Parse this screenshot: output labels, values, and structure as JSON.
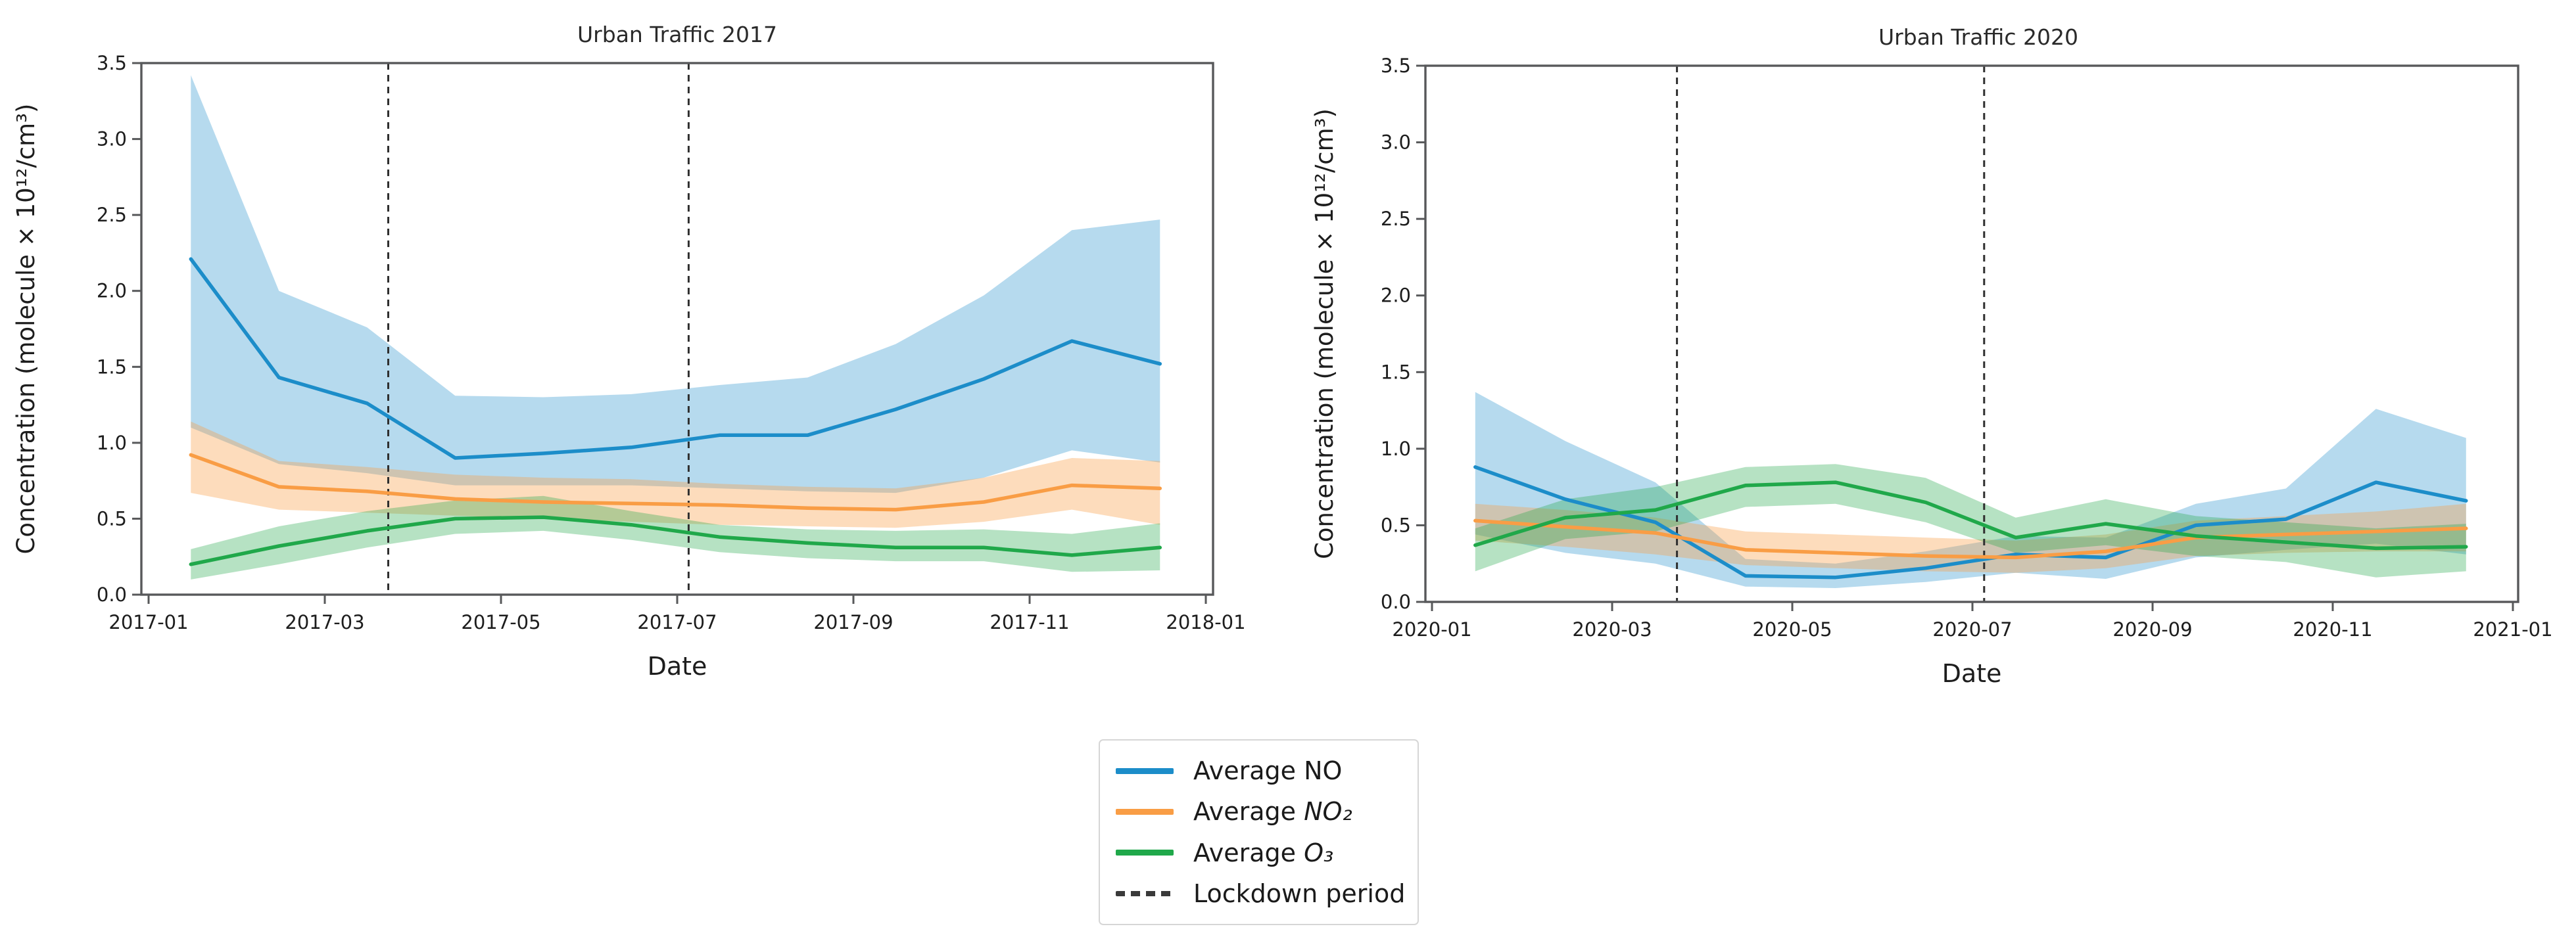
{
  "page": {
    "background_color": "#ffffff"
  },
  "legend": {
    "items": [
      {
        "prefix": "Average ",
        "formula": "NO",
        "swatch": "line",
        "color": "#1c8dc9"
      },
      {
        "prefix": "Average ",
        "formula": "NO₂",
        "swatch": "line",
        "color": "#f99d45"
      },
      {
        "prefix": "Average ",
        "formula": "O₃",
        "swatch": "line",
        "color": "#20a84a"
      },
      {
        "prefix": "Lockdown period",
        "formula": "",
        "swatch": "dashed",
        "color": "#3a3a3a"
      }
    ]
  },
  "chart_data": [
    {
      "type": "line",
      "title": "Urban Traffic 2017",
      "xlabel": "Date",
      "ylabel": "Concentration (molecule × 10¹²/cm³)",
      "ylim": [
        0,
        3.5
      ],
      "ytick_labels": [
        "0.0",
        "0.5",
        "1.0",
        "1.5",
        "2.0",
        "2.5",
        "3.0",
        "3.5"
      ],
      "xtick_labels": [
        "2017-01",
        "2017-03",
        "2017-05",
        "2017-07",
        "2017-09",
        "2017-11",
        "2018-01"
      ],
      "categories": [
        "2017-01",
        "2017-02",
        "2017-03",
        "2017-04",
        "2017-05",
        "2017-06",
        "2017-07",
        "2017-08",
        "2017-09",
        "2017-10",
        "2017-11",
        "2017-12"
      ],
      "grid": false,
      "lockdown_lines_x_months": [
        2.72,
        6.13
      ],
      "series": [
        {
          "name": "Average NO",
          "color": "#1c8dc9",
          "values": [
            2.21,
            1.43,
            1.26,
            0.9,
            0.93,
            0.97,
            1.05,
            1.05,
            1.22,
            1.42,
            1.67,
            1.52
          ],
          "band_upper": [
            3.42,
            2.0,
            1.76,
            1.31,
            1.3,
            1.32,
            1.38,
            1.43,
            1.65,
            1.97,
            2.4,
            2.47
          ],
          "band_lower": [
            1.1,
            0.86,
            0.8,
            0.72,
            0.72,
            0.72,
            0.7,
            0.68,
            0.67,
            0.77,
            0.95,
            0.87
          ]
        },
        {
          "name": "Average NO₂",
          "color": "#f99d45",
          "values": [
            0.92,
            0.71,
            0.68,
            0.63,
            0.61,
            0.6,
            0.59,
            0.57,
            0.56,
            0.61,
            0.72,
            0.7
          ],
          "band_upper": [
            1.14,
            0.88,
            0.84,
            0.79,
            0.77,
            0.76,
            0.73,
            0.71,
            0.7,
            0.77,
            0.9,
            0.88
          ],
          "band_lower": [
            0.67,
            0.56,
            0.54,
            0.52,
            0.5,
            0.48,
            0.46,
            0.45,
            0.44,
            0.48,
            0.56,
            0.46
          ]
        },
        {
          "name": "Average O₃",
          "color": "#20a84a",
          "values": [
            0.2,
            0.32,
            0.42,
            0.5,
            0.51,
            0.46,
            0.38,
            0.34,
            0.31,
            0.31,
            0.26,
            0.31
          ],
          "band_upper": [
            0.3,
            0.45,
            0.55,
            0.62,
            0.65,
            0.55,
            0.46,
            0.43,
            0.42,
            0.43,
            0.4,
            0.47
          ],
          "band_lower": [
            0.1,
            0.2,
            0.31,
            0.4,
            0.42,
            0.36,
            0.28,
            0.24,
            0.22,
            0.22,
            0.15,
            0.16
          ]
        }
      ]
    },
    {
      "type": "line",
      "title": "Urban Traffic 2020",
      "xlabel": "Date",
      "ylabel": "Concentration (molecule × 10¹²/cm³)",
      "ylim": [
        0,
        3.5
      ],
      "ytick_labels": [
        "0.0",
        "0.5",
        "1.0",
        "1.5",
        "2.0",
        "2.5",
        "3.0",
        "3.5"
      ],
      "xtick_labels": [
        "2020-01",
        "2020-03",
        "2020-05",
        "2020-07",
        "2020-09",
        "2020-11",
        "2021-01"
      ],
      "categories": [
        "2020-01",
        "2020-02",
        "2020-03",
        "2020-04",
        "2020-05",
        "2020-06",
        "2020-07",
        "2020-08",
        "2020-09",
        "2020-10",
        "2020-11",
        "2020-12"
      ],
      "grid": false,
      "lockdown_lines_x_months": [
        2.72,
        6.13
      ],
      "series": [
        {
          "name": "Average NO",
          "color": "#1c8dc9",
          "values": [
            0.88,
            0.67,
            0.52,
            0.17,
            0.16,
            0.22,
            0.31,
            0.29,
            0.5,
            0.54,
            0.78,
            0.66
          ],
          "band_upper": [
            1.37,
            1.05,
            0.78,
            0.28,
            0.25,
            0.33,
            0.43,
            0.42,
            0.64,
            0.74,
            1.26,
            1.07
          ],
          "band_lower": [
            0.44,
            0.32,
            0.25,
            0.1,
            0.09,
            0.13,
            0.19,
            0.15,
            0.29,
            0.34,
            0.38,
            0.31
          ]
        },
        {
          "name": "Average NO₂",
          "color": "#f99d45",
          "values": [
            0.53,
            0.49,
            0.45,
            0.34,
            0.32,
            0.3,
            0.29,
            0.33,
            0.42,
            0.44,
            0.46,
            0.48
          ],
          "band_upper": [
            0.64,
            0.6,
            0.55,
            0.46,
            0.44,
            0.42,
            0.4,
            0.44,
            0.53,
            0.56,
            0.59,
            0.64
          ],
          "band_lower": [
            0.4,
            0.36,
            0.31,
            0.24,
            0.22,
            0.2,
            0.19,
            0.22,
            0.3,
            0.32,
            0.33,
            0.33
          ]
        },
        {
          "name": "Average O₃",
          "color": "#20a84a",
          "values": [
            0.37,
            0.55,
            0.6,
            0.76,
            0.78,
            0.65,
            0.42,
            0.51,
            0.43,
            0.39,
            0.35,
            0.36
          ],
          "band_upper": [
            0.48,
            0.67,
            0.75,
            0.88,
            0.9,
            0.81,
            0.55,
            0.67,
            0.56,
            0.52,
            0.48,
            0.51
          ],
          "band_lower": [
            0.2,
            0.41,
            0.46,
            0.62,
            0.64,
            0.52,
            0.32,
            0.37,
            0.3,
            0.26,
            0.16,
            0.2
          ]
        }
      ]
    }
  ]
}
